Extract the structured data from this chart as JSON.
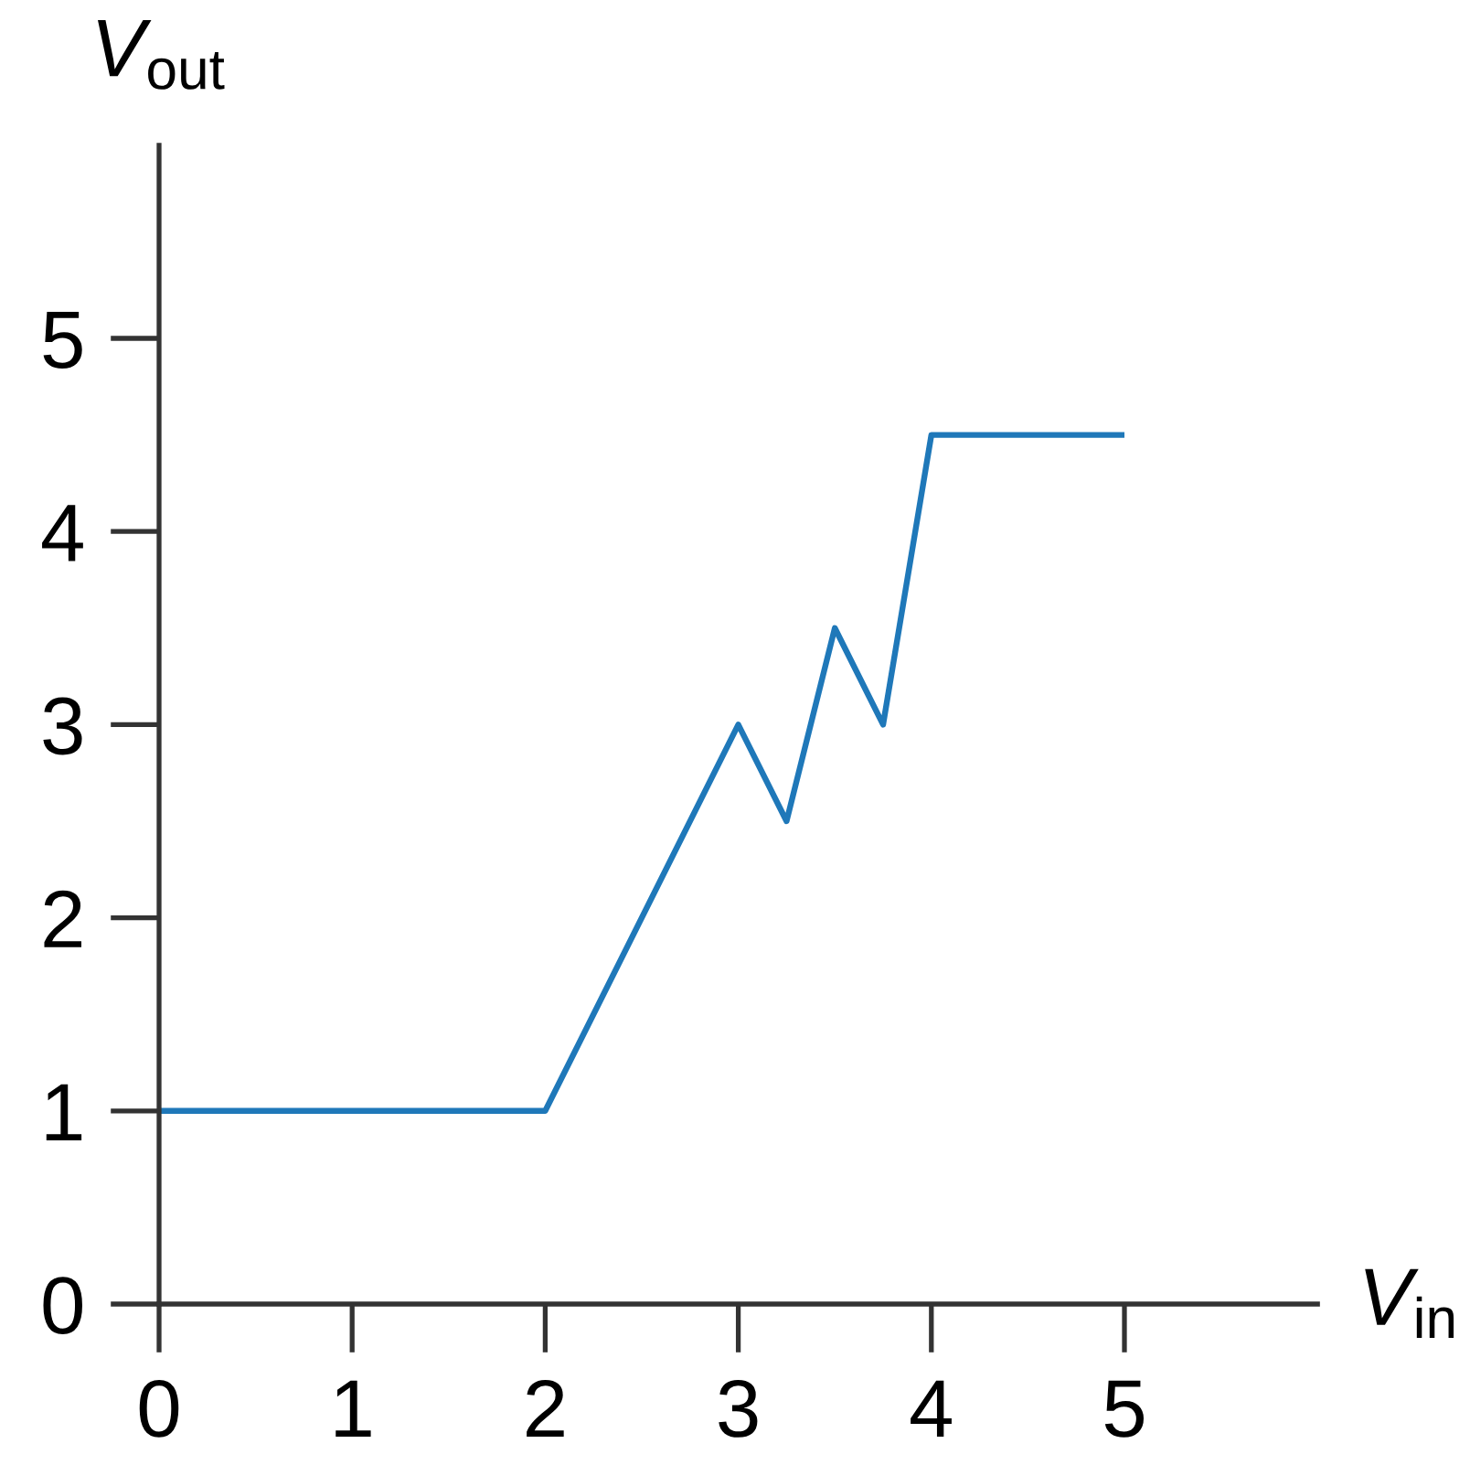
{
  "chart_data": {
    "type": "line",
    "xlabel": "V$_{in}$",
    "ylabel": "V$_{out}$",
    "x": [
      0,
      2,
      3,
      3.25,
      3.5,
      3.75,
      4,
      5
    ],
    "series": [
      {
        "color": "#1f78b9",
        "values": [
          1,
          1,
          3,
          2.5,
          3.5,
          3,
          4.5,
          4.5
        ]
      }
    ],
    "xlim": [
      0,
      6
    ],
    "ylim": [
      0,
      6
    ],
    "xticks": [
      0,
      1,
      2,
      3,
      4,
      5
    ],
    "yticks": [
      0,
      1,
      2,
      3,
      4,
      5
    ],
    "grid": false,
    "marker": "none",
    "line_style": "solid"
  }
}
